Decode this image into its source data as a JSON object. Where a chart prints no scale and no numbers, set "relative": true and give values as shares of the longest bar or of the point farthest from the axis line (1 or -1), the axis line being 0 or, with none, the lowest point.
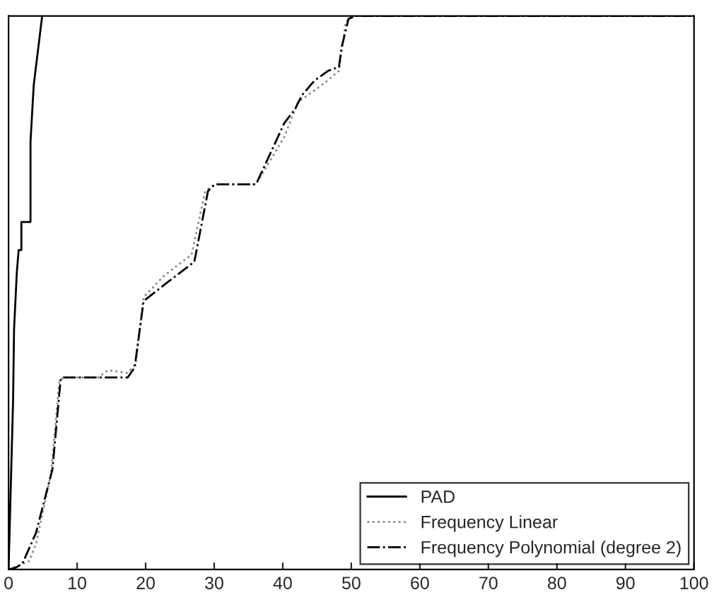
{
  "chart_data": {
    "type": "line",
    "relative": true,
    "xlim": [
      0,
      100
    ],
    "xticks": [
      0,
      10,
      20,
      30,
      40,
      50,
      60,
      70,
      80,
      90,
      100
    ],
    "legend": "bottom right",
    "grid": false,
    "marker": "none",
    "series": [
      {
        "name": "PAD",
        "color": "#000000",
        "line_style": "solid",
        "x": [
          0,
          0.66,
          0.8,
          1.2,
          1.47,
          1.87,
          1.87,
          3.2,
          3.2,
          3.67,
          4.9
        ],
        "values": [
          0,
          0.306,
          0.434,
          0.536,
          0.577,
          0.577,
          0.628,
          0.628,
          0.773,
          0.875,
          1.0
        ]
      },
      {
        "name": "Frequency Linear",
        "color": "#888888",
        "line_style": "dotted",
        "x": [
          0,
          3.0,
          4.0,
          6.2,
          7.4,
          8.0,
          13.1,
          14.5,
          17.3,
          18.5,
          19.7,
          22.7,
          26.7,
          28.7,
          30.1,
          36.1,
          40.2,
          42.2,
          46.2,
          48.2,
          49.2,
          50.4,
          100
        ],
        "values": [
          0,
          0.015,
          0.046,
          0.173,
          0.339,
          0.347,
          0.347,
          0.36,
          0.355,
          0.37,
          0.492,
          0.531,
          0.569,
          0.684,
          0.696,
          0.696,
          0.781,
          0.844,
          0.88,
          0.901,
          0.99,
          1.0,
          1.0
        ]
      },
      {
        "name": "Frequency Polynomial (degree 2)",
        "color": "#000000",
        "line_style": "dashdot",
        "x": [
          0,
          1.0,
          2.0,
          4.0,
          6.4,
          7.6,
          8.0,
          17.4,
          18.4,
          19.7,
          23.1,
          27.1,
          29.1,
          30.1,
          36.1,
          38.8,
          40.2,
          41.8,
          42.8,
          44.6,
          46.6,
          48.2,
          48.6,
          49.6,
          50.6,
          100
        ],
        "values": [
          0,
          0.003,
          0.01,
          0.066,
          0.181,
          0.344,
          0.347,
          0.347,
          0.365,
          0.485,
          0.518,
          0.556,
          0.684,
          0.696,
          0.696,
          0.768,
          0.806,
          0.832,
          0.857,
          0.883,
          0.901,
          0.908,
          0.944,
          0.995,
          1.0,
          1.0
        ]
      }
    ]
  }
}
